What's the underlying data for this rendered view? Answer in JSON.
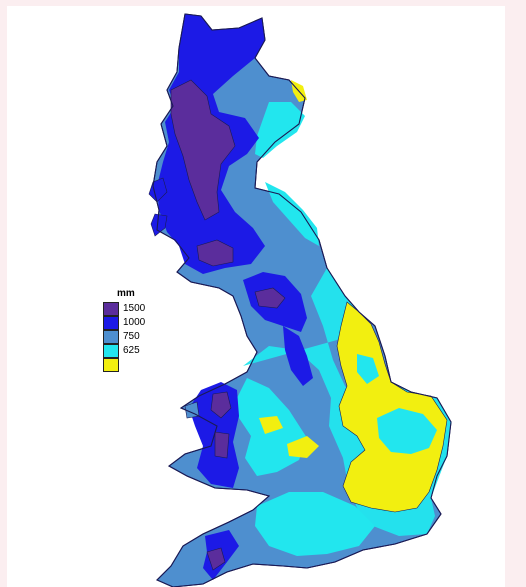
{
  "legend": {
    "unit": "mm",
    "items": [
      {
        "label": "1500",
        "color": "#5b2d9c"
      },
      {
        "label": "1000",
        "color": "#1c1ae6"
      },
      {
        "label": "750",
        "color": "#4e8fcf"
      },
      {
        "label": "625",
        "color": "#22e6ee"
      },
      {
        "label": "",
        "color": "#f2ef10"
      }
    ]
  },
  "colors": {
    "background": "#fbeef0",
    "frame": "#ffffff",
    "coastline": "#1a1a55"
  }
}
